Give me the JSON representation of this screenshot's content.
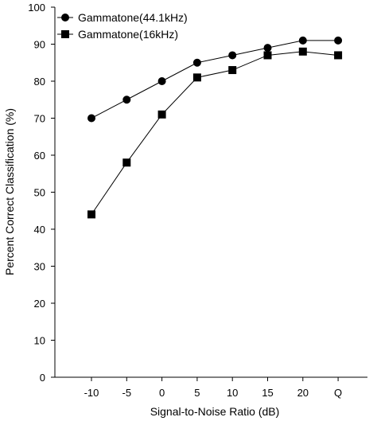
{
  "chart_data": {
    "type": "line",
    "title": "",
    "xlabel": "Signal-to-Noise Ratio (dB)",
    "ylabel": "Percent Correct Classification (%)",
    "categories": [
      "-10",
      "-5",
      "0",
      "5",
      "10",
      "15",
      "20",
      "Q"
    ],
    "ylim": [
      0,
      100
    ],
    "yticks": [
      0,
      10,
      20,
      30,
      40,
      50,
      60,
      70,
      80,
      90,
      100
    ],
    "grid": false,
    "legend_position": "top-left",
    "series": [
      {
        "name": "Gammatone(44.1kHz)",
        "marker": "circle",
        "color": "#000000",
        "values": [
          70,
          75,
          80,
          85,
          87,
          89,
          91,
          91
        ]
      },
      {
        "name": "Gammatone(16kHz)",
        "marker": "square",
        "color": "#000000",
        "values": [
          44,
          58,
          71,
          81,
          83,
          87,
          88,
          87
        ]
      }
    ]
  }
}
